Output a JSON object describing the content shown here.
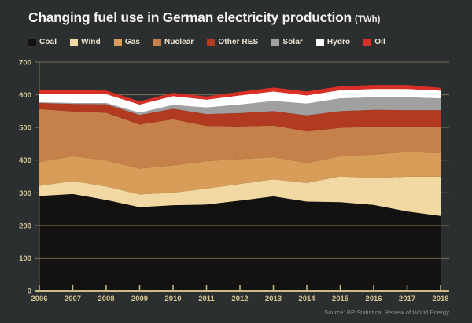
{
  "header": {
    "title": "Changing fuel use in German electricity production",
    "title_suffix": "(TWh)"
  },
  "source": "Source: BP Statistical Review of World Energy",
  "colors": {
    "background": "#2c2f2f",
    "plot_fill_base": "#141210",
    "grid": "#b7a878",
    "axis_line": "#cdbb85",
    "axis_text": "#d3c493",
    "title_text": "#f5f3ef",
    "legend_text": "#ece5d4",
    "source_text": "#8f918f"
  },
  "chart_data": {
    "type": "area",
    "stacked": true,
    "title": "Changing fuel use in German electricity production (TWh)",
    "xlabel": "",
    "ylabel": "TWh",
    "x": [
      2006,
      2007,
      2008,
      2009,
      2010,
      2011,
      2012,
      2013,
      2014,
      2015,
      2016,
      2017,
      2018
    ],
    "ylim": [
      0,
      700
    ],
    "ytick_step": 100,
    "grid": true,
    "legend_position": "top",
    "series": [
      {
        "name": "Coal",
        "color": "#141210",
        "values": [
          290,
          296,
          278,
          256,
          262,
          264,
          276,
          289,
          273,
          271,
          263,
          243,
          229
        ]
      },
      {
        "name": "Wind",
        "color": "#f2d9a4",
        "values": [
          31,
          40,
          41,
          39,
          38,
          49,
          51,
          52,
          57,
          79,
          82,
          106,
          120
        ]
      },
      {
        "name": "Gas",
        "color": "#d89d58",
        "values": [
          73,
          76,
          80,
          79,
          84,
          84,
          76,
          68,
          61,
          62,
          72,
          76,
          72
        ]
      },
      {
        "name": "Nuclear",
        "color": "#c6804a",
        "values": [
          162,
          137,
          146,
          135,
          141,
          108,
          100,
          97,
          97,
          87,
          85,
          76,
          82
        ]
      },
      {
        "name": "Other RES",
        "color": "#b23a21",
        "values": [
          19,
          23,
          26,
          29,
          32,
          36,
          41,
          44,
          49,
          51,
          52,
          52,
          50
        ]
      },
      {
        "name": "Solar",
        "color": "#a1a0a0",
        "values": [
          2,
          3,
          4,
          7,
          12,
          20,
          26,
          31,
          36,
          39,
          38,
          39,
          36
        ]
      },
      {
        "name": "Hydro",
        "color": "#ffffff",
        "values": [
          26,
          28,
          27,
          25,
          27,
          24,
          28,
          29,
          25,
          25,
          26,
          26,
          24
        ]
      },
      {
        "name": "Oil",
        "color": "#d92f27",
        "values": [
          12,
          11,
          11,
          10,
          10,
          10,
          11,
          12,
          12,
          12,
          12,
          12,
          8
        ]
      }
    ]
  }
}
